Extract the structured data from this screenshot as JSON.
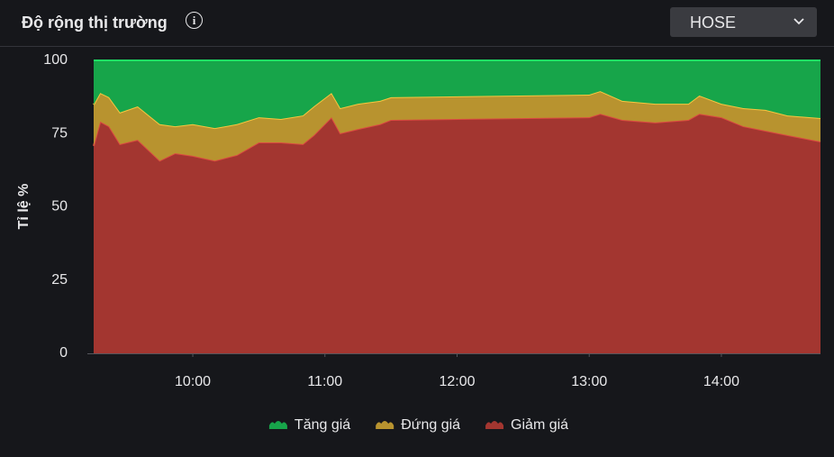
{
  "header": {
    "title": "Độ rộng thị trường",
    "dropdown": "HOSE"
  },
  "chart_data": {
    "type": "stacked-area",
    "y_label": "Tỉ lệ %",
    "x": [
      "09:15",
      "09:18",
      "09:22",
      "09:27",
      "09:35",
      "09:45",
      "09:52",
      "10:00",
      "10:10",
      "10:20",
      "10:30",
      "10:40",
      "10:50",
      "10:55",
      "11:03",
      "11:07",
      "11:15",
      "11:25",
      "11:30",
      "13:00",
      "13:05",
      "13:15",
      "13:30",
      "13:45",
      "13:50",
      "14:00",
      "14:10",
      "14:20",
      "14:30",
      "14:45"
    ],
    "xlim": [
      "09:15",
      "14:45"
    ],
    "xticks": [
      "10:00",
      "11:00",
      "12:00",
      "13:00",
      "14:00"
    ],
    "ylim": [
      0,
      100
    ],
    "yticks": [
      0,
      25,
      50,
      75,
      100
    ],
    "grid": false,
    "legend": "bottom",
    "series": [
      {
        "name": "Tăng giá",
        "color": "#17a54a",
        "values": [
          15.1,
          11.1,
          12.6,
          17.8,
          15.7,
          21.8,
          22.5,
          21.8,
          23.1,
          21.8,
          19.4,
          20.0,
          18.8,
          15.7,
          11.1,
          16.3,
          14.8,
          13.8,
          12.6,
          11.7,
          10.5,
          13.8,
          14.8,
          14.8,
          12.0,
          14.8,
          16.3,
          16.9,
          18.8,
          19.7
        ]
      },
      {
        "name": "Đứng giá",
        "color": "#b8932f",
        "values": [
          14.1,
          9.8,
          9.9,
          10.8,
          11.4,
          12.4,
          9.2,
          10.8,
          11.1,
          10.5,
          8.6,
          8.0,
          9.8,
          9.8,
          8.3,
          8.6,
          8.6,
          8.0,
          7.7,
          7.7,
          7.7,
          6.5,
          6.4,
          5.5,
          6.2,
          4.6,
          6.2,
          7.1,
          6.7,
          8.0
        ]
      },
      {
        "name": "Giảm giá",
        "color": "#a33630",
        "values": [
          70.8,
          79.1,
          77.5,
          71.4,
          72.9,
          65.8,
          68.3,
          67.4,
          65.8,
          67.7,
          72.0,
          72.0,
          71.4,
          74.5,
          80.6,
          75.1,
          76.6,
          78.2,
          79.7,
          80.6,
          81.8,
          79.7,
          78.8,
          79.7,
          81.8,
          80.6,
          77.5,
          76.0,
          74.5,
          72.3
        ]
      }
    ]
  }
}
